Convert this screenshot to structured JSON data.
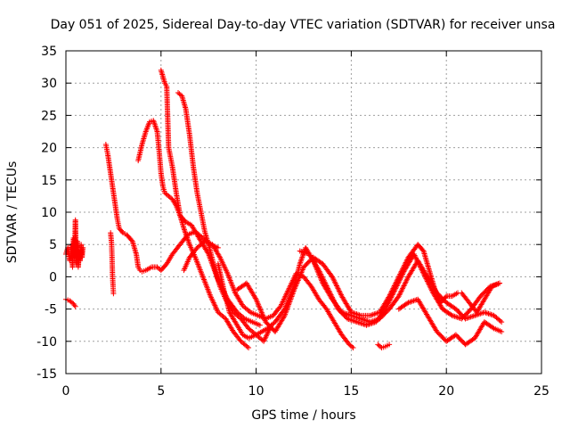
{
  "chart_data": {
    "type": "scatter",
    "title": "Day 051 of 2025, Sidereal Day-to-day VTEC variation (SDTVAR) for receiver unsa",
    "xlabel": "GPS time / hours",
    "ylabel": "SDTVAR / TECUs",
    "xlim": [
      0,
      25
    ],
    "ylim": [
      -15,
      35
    ],
    "xticks": [
      0,
      5,
      10,
      15,
      20,
      25
    ],
    "yticks": [
      -15,
      -10,
      -5,
      0,
      5,
      10,
      15,
      20,
      25,
      30,
      35
    ],
    "grid": true,
    "marker": "+",
    "color": "#ff0000",
    "series": [
      {
        "name": "s1",
        "x": [
          0.0,
          0.2,
          0.4,
          0.5
        ],
        "y": [
          -3.5,
          -3.7,
          -4.2,
          -4.6
        ]
      },
      {
        "name": "s2",
        "x": [
          0.0,
          0.1,
          0.2,
          0.3,
          0.35,
          0.4,
          0.45,
          0.5,
          0.55,
          0.6,
          0.65,
          0.7,
          0.75,
          0.8,
          0.85,
          0.9
        ],
        "y": [
          3.5,
          4.5,
          2.5,
          5.0,
          1.5,
          6.0,
          3.0,
          8.8,
          2.0,
          5.5,
          1.5,
          4.0,
          2.5,
          5.0,
          3.0,
          4.5
        ]
      },
      {
        "name": "s3",
        "x": [
          2.1,
          2.2,
          2.3,
          2.4,
          2.5,
          2.6,
          2.7,
          2.8,
          3.0,
          3.2,
          3.5,
          3.7,
          3.8,
          3.9,
          4.0,
          4.2,
          4.5,
          4.8,
          5.0,
          5.3,
          5.6,
          6.0,
          6.4,
          6.8,
          7.2,
          7.6,
          8.0
        ],
        "y": [
          20.5,
          19.0,
          17.0,
          15.0,
          13.0,
          11.0,
          9.0,
          7.5,
          6.8,
          6.5,
          5.5,
          3.5,
          1.5,
          1.0,
          0.8,
          1.0,
          1.5,
          1.5,
          1.0,
          2.0,
          3.5,
          5.0,
          6.5,
          7.0,
          6.0,
          5.0,
          4.5
        ]
      },
      {
        "name": "s4",
        "x": [
          2.35,
          2.4,
          2.42,
          2.45,
          2.48,
          2.5
        ],
        "y": [
          6.8,
          5.2,
          3.5,
          0.2,
          -1.5,
          -2.6
        ]
      },
      {
        "name": "s5",
        "x": [
          3.8,
          4.0,
          4.2,
          4.4,
          4.6,
          4.8,
          4.9,
          5.0,
          5.1,
          5.2,
          5.4,
          5.6,
          5.8,
          6.0,
          6.3,
          6.6,
          7.0,
          7.5,
          8.0,
          8.5,
          9.0,
          9.4,
          9.8,
          10.2
        ],
        "y": [
          18.0,
          20.5,
          22.5,
          24.0,
          24.2,
          22.5,
          19.5,
          16.0,
          14.0,
          13.0,
          12.5,
          12.0,
          11.0,
          9.5,
          8.5,
          8.0,
          6.0,
          3.5,
          -0.5,
          -3.5,
          -5.5,
          -6.5,
          -7.0,
          -7.5
        ]
      },
      {
        "name": "s6",
        "x": [
          5.0,
          5.2,
          5.3,
          5.4,
          5.6,
          5.8,
          6.0,
          6.2,
          6.5,
          6.8,
          7.2,
          7.6,
          8.0,
          8.4,
          8.8,
          9.2,
          9.6
        ],
        "y": [
          32.0,
          30.0,
          29.5,
          20.0,
          17.0,
          13.0,
          9.5,
          7.5,
          5.0,
          3.0,
          0.0,
          -3.0,
          -5.5,
          -6.5,
          -8.5,
          -10.0,
          -11.0
        ]
      },
      {
        "name": "s7",
        "x": [
          5.9,
          6.1,
          6.3,
          6.5,
          6.7,
          6.9,
          7.1,
          7.3,
          7.5,
          7.8,
          8.1,
          8.4,
          8.8,
          9.2,
          9.6,
          10.0,
          10.4,
          10.8
        ],
        "y": [
          28.5,
          28.0,
          26.0,
          22.0,
          17.0,
          13.0,
          10.0,
          7.0,
          5.0,
          1.5,
          -1.5,
          -3.5,
          -5.5,
          -6.5,
          -8.0,
          -9.0,
          -10.0,
          -7.5
        ]
      },
      {
        "name": "s8",
        "x": [
          6.2,
          6.5,
          6.9,
          7.3,
          7.7,
          8.1,
          8.5,
          8.9,
          9.3,
          9.7,
          10.1,
          10.5,
          10.9,
          11.3,
          11.7,
          12.1,
          12.5,
          12.9,
          13.3,
          13.7,
          14.1,
          14.5,
          14.9,
          15.1
        ],
        "y": [
          1.0,
          3.0,
          4.5,
          5.5,
          5.0,
          3.0,
          0.5,
          -2.5,
          -4.5,
          -5.5,
          -6.0,
          -6.5,
          -6.0,
          -4.5,
          -2.0,
          0.5,
          0.0,
          -1.5,
          -3.5,
          -5.0,
          -7.0,
          -9.0,
          -10.5,
          -11.0
        ]
      },
      {
        "name": "s9",
        "x": [
          8.0,
          8.3,
          8.6,
          9.0,
          9.3,
          9.6,
          10.0,
          10.3,
          10.6,
          11.0,
          11.5,
          12.0,
          12.3,
          12.6,
          13.0,
          13.5,
          14.0,
          14.5,
          15.0,
          15.5,
          16.0,
          16.5,
          17.0,
          17.5,
          18.0,
          18.5,
          19.0,
          19.5,
          20.0,
          20.5,
          21.0,
          21.5,
          22.0,
          22.5,
          22.9
        ],
        "y": [
          2.0,
          -2.0,
          -5.5,
          -7.5,
          -9.0,
          -9.5,
          -9.0,
          -8.5,
          -8.0,
          -7.0,
          -5.0,
          -1.5,
          2.0,
          4.5,
          2.5,
          -1.0,
          -3.5,
          -5.5,
          -6.0,
          -6.5,
          -7.0,
          -6.5,
          -5.0,
          -3.0,
          0.0,
          2.5,
          0.0,
          -2.5,
          -4.0,
          -5.0,
          -6.5,
          -6.0,
          -5.5,
          -6.0,
          -7.0
        ]
      },
      {
        "name": "s10",
        "x": [
          9.0,
          9.5,
          10.0,
          10.5,
          11.0,
          11.5,
          12.0,
          12.5,
          13.0,
          13.5,
          14.0,
          14.5,
          15.0,
          15.5,
          16.0,
          16.5,
          17.0,
          17.5,
          18.0,
          18.5,
          18.8,
          19.1,
          19.4,
          19.7,
          20.0,
          20.3,
          20.6
        ],
        "y": [
          -2.0,
          -1.0,
          -3.5,
          -7.0,
          -8.5,
          -6.0,
          -2.0,
          1.5,
          3.0,
          2.0,
          0.0,
          -3.0,
          -5.5,
          -6.0,
          -6.0,
          -5.5,
          -3.0,
          0.0,
          3.0,
          5.0,
          4.0,
          1.0,
          -2.0,
          -4.0,
          -3.0,
          -3.0,
          -2.5
        ]
      },
      {
        "name": "s11",
        "x": [
          12.3,
          12.8,
          13.3,
          13.8,
          14.3,
          14.8,
          15.3,
          15.8,
          16.3,
          16.8,
          17.3,
          17.8,
          18.3,
          18.8,
          19.3,
          19.8,
          20.3,
          20.8,
          21.3,
          21.8,
          22.3,
          22.8
        ],
        "y": [
          4.0,
          3.5,
          1.0,
          -2.0,
          -5.0,
          -6.5,
          -7.0,
          -7.5,
          -7.0,
          -5.0,
          -2.0,
          1.0,
          3.5,
          0.5,
          -2.5,
          -5.0,
          -6.0,
          -6.5,
          -5.0,
          -3.0,
          -1.5,
          -1.0
        ]
      },
      {
        "name": "s12",
        "x": [
          16.4,
          16.6,
          16.8,
          17.0
        ],
        "y": [
          -10.5,
          -11.0,
          -10.8,
          -10.5
        ]
      },
      {
        "name": "s13",
        "x": [
          17.5,
          18.0,
          18.5,
          19.0,
          19.5,
          20.0,
          20.5,
          21.0,
          21.5,
          22.0,
          22.5,
          22.9
        ],
        "y": [
          -5.0,
          -4.0,
          -3.5,
          -6.0,
          -8.5,
          -10.0,
          -9.0,
          -10.5,
          -9.5,
          -7.0,
          -8.0,
          -8.5
        ]
      },
      {
        "name": "s14",
        "x": [
          20.8,
          21.2,
          21.6,
          22.0,
          22.4,
          22.8
        ],
        "y": [
          -2.5,
          -4.0,
          -5.5,
          -3.5,
          -1.5,
          -1.0
        ]
      }
    ]
  }
}
